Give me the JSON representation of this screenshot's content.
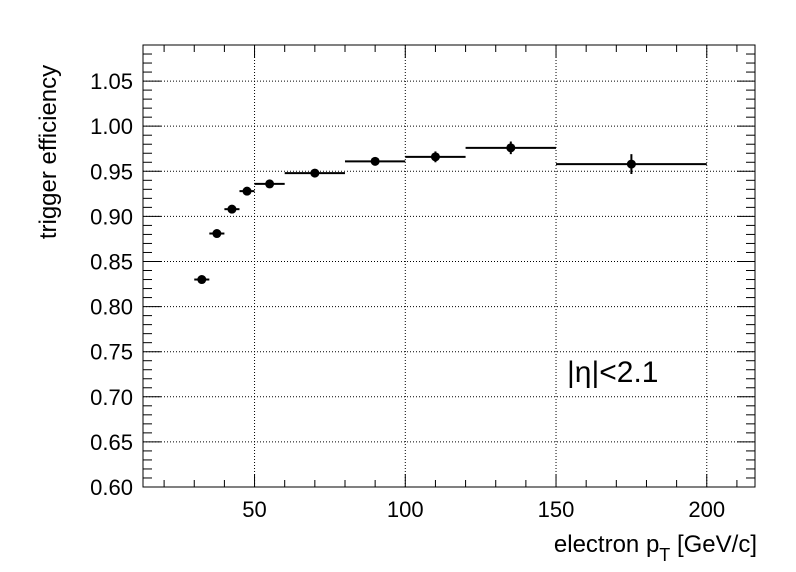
{
  "chart_data": {
    "type": "scatter",
    "title": "",
    "xlabel": {
      "main": "electron p",
      "sub": "T",
      "unit": " [GeV/c]"
    },
    "ylabel": "trigger efficiency",
    "xlim": [
      13,
      216
    ],
    "ylim": [
      0.6,
      1.09
    ],
    "grid": true,
    "x_ticks": [
      50,
      100,
      150,
      200
    ],
    "y_ticks": [
      0.6,
      0.65,
      0.7,
      0.75,
      0.8,
      0.85,
      0.9,
      0.95,
      1.0,
      1.05
    ],
    "x_tick_labels": [
      "50",
      "100",
      "150",
      "200"
    ],
    "y_tick_labels": [
      "0.60",
      "0.65",
      "0.70",
      "0.75",
      "0.80",
      "0.85",
      "0.90",
      "0.95",
      "1.00",
      "1.05"
    ],
    "annotation": "|η|<2.1",
    "points": [
      {
        "x": 32.5,
        "xlo": 30,
        "xhi": 35,
        "y": 0.83,
        "yerr": 0.003
      },
      {
        "x": 37.5,
        "xlo": 35,
        "xhi": 40,
        "y": 0.881,
        "yerr": 0.003
      },
      {
        "x": 42.5,
        "xlo": 40,
        "xhi": 45,
        "y": 0.908,
        "yerr": 0.003
      },
      {
        "x": 47.5,
        "xlo": 45,
        "xhi": 50,
        "y": 0.928,
        "yerr": 0.003
      },
      {
        "x": 55,
        "xlo": 50,
        "xhi": 60,
        "y": 0.936,
        "yerr": 0.003
      },
      {
        "x": 70,
        "xlo": 60,
        "xhi": 80,
        "y": 0.948,
        "yerr": 0.003
      },
      {
        "x": 90,
        "xlo": 80,
        "xhi": 100,
        "y": 0.961,
        "yerr": 0.004
      },
      {
        "x": 110,
        "xlo": 100,
        "xhi": 120,
        "y": 0.966,
        "yerr": 0.006
      },
      {
        "x": 135,
        "xlo": 120,
        "xhi": 150,
        "y": 0.976,
        "yerr": 0.007
      },
      {
        "x": 175,
        "xlo": 150,
        "xhi": 200,
        "y": 0.958,
        "yerr": 0.011
      }
    ]
  }
}
